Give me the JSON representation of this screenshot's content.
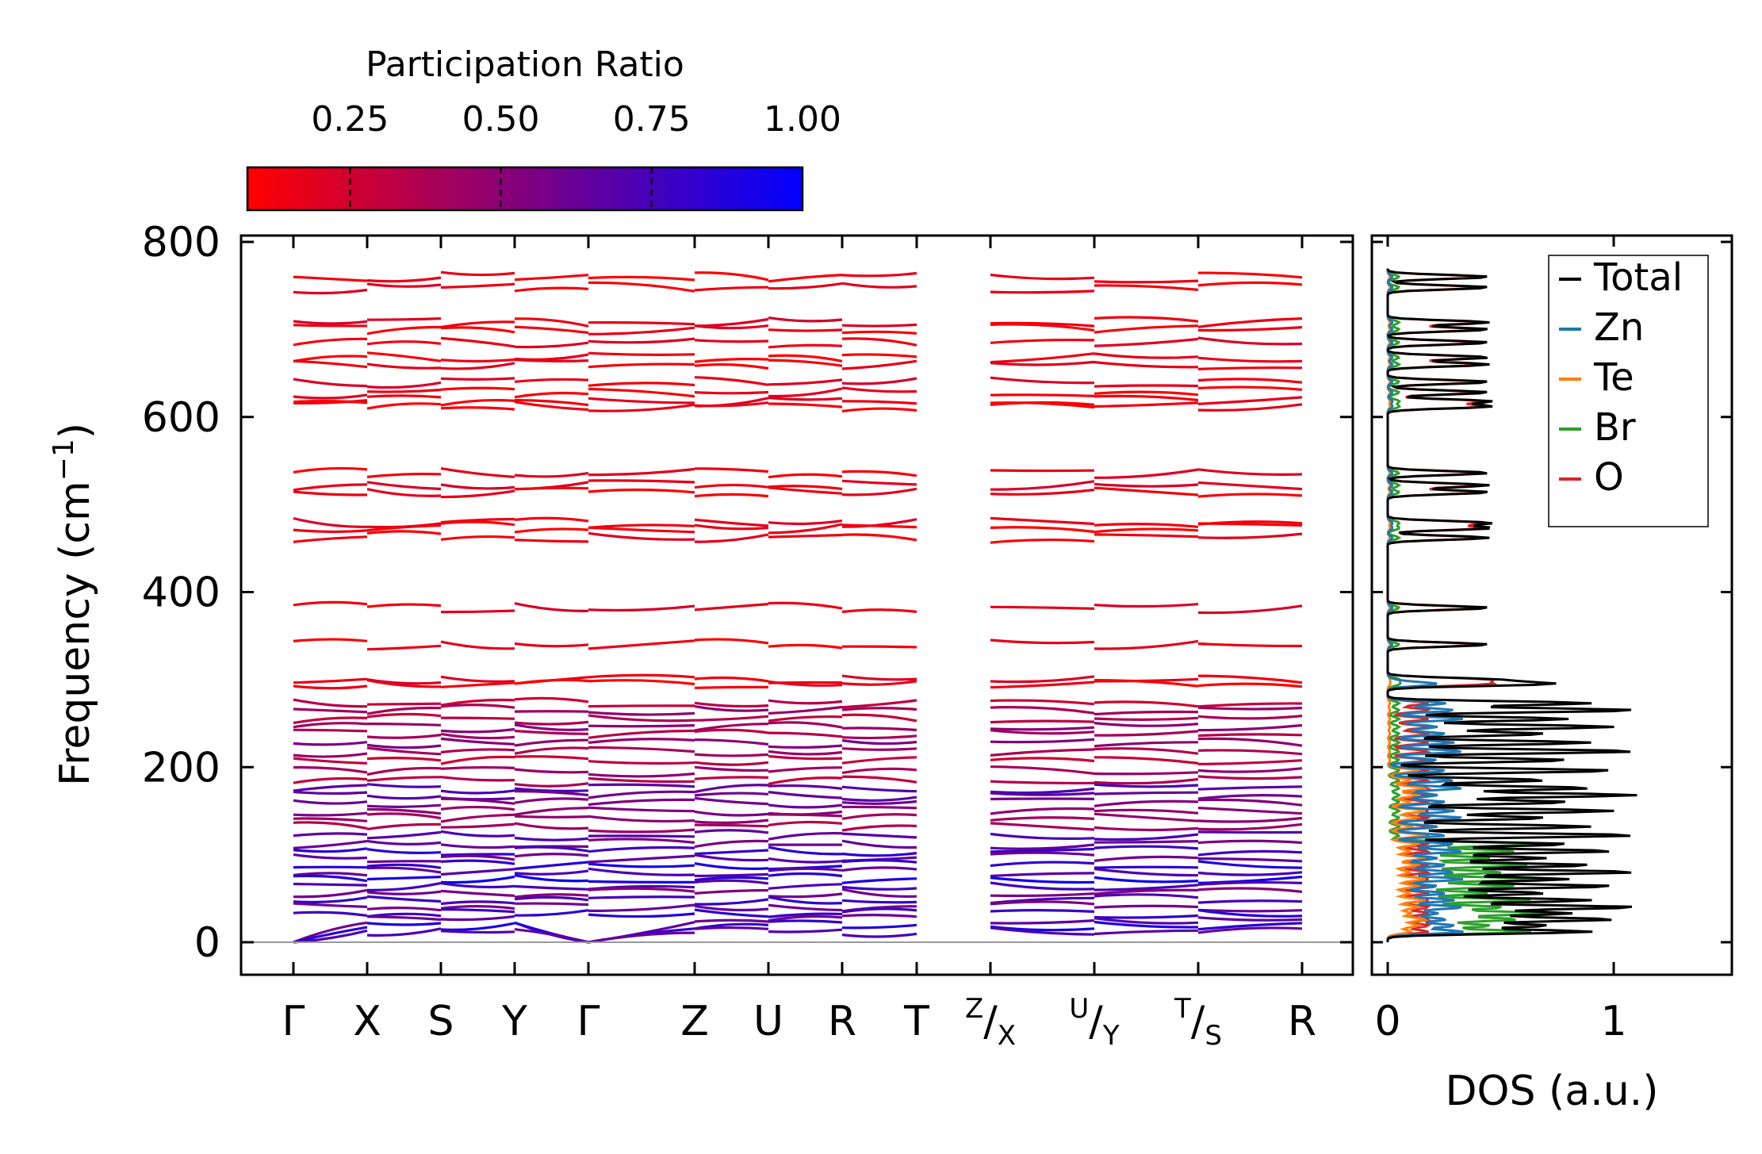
{
  "chart_data": [
    {
      "type": "line",
      "panel": "band-structure",
      "ylabel": "Frequency (cm⁻¹)",
      "ylabel_text": "Frequency (cm",
      "ylabel_sup": "−1",
      "ylabel_close": ")",
      "ylim": [
        -37,
        800
      ],
      "yticks": [
        0,
        200,
        400,
        600,
        800
      ],
      "ytick_labels": [
        "0",
        "200",
        "400",
        "600",
        "800"
      ],
      "path_labels": [
        {
          "main": "Γ"
        },
        {
          "main": "X"
        },
        {
          "main": "S"
        },
        {
          "main": "Y"
        },
        {
          "main": "Γ"
        },
        {
          "main": "Z"
        },
        {
          "main": "U"
        },
        {
          "main": "R"
        },
        {
          "main": "T"
        },
        {
          "sup": "Z",
          "main": "/",
          "sub": "X"
        },
        {
          "sup": "U",
          "main": "/",
          "sub": "Y"
        },
        {
          "sup": "T",
          "main": "/",
          "sub": "S"
        },
        {
          "main": "R"
        }
      ],
      "band_frequencies": [
        760,
        748,
        708,
        700,
        685,
        668,
        660,
        640,
        628,
        618,
        612,
        536,
        522,
        514,
        479,
        473,
        462,
        382,
        340,
        300,
        295,
        273,
        265,
        255,
        246,
        238,
        228,
        218,
        208,
        196,
        185,
        176,
        168,
        160,
        150,
        142,
        132,
        122,
        112,
        104,
        96,
        88,
        80,
        72,
        64,
        56,
        48,
        40,
        33,
        26,
        19,
        12
      ],
      "colormap": {
        "label": "Participation Ratio",
        "range": [
          0.08,
          1.0
        ],
        "ticks": [
          "0.25",
          "0.50",
          "0.75",
          "1.00"
        ],
        "tick_values": [
          0.25,
          0.5,
          0.75,
          1.0
        ],
        "color_low": "#ff0000",
        "color_high": "#0000ff"
      }
    },
    {
      "type": "line",
      "panel": "dos",
      "xlabel": "DOS (a.u.)",
      "xlim": [
        -0.02,
        1.55
      ],
      "xticks": [
        "0",
        "1"
      ],
      "xtick_values": [
        0,
        1
      ],
      "series": [
        {
          "name": "Total",
          "color": "#000000"
        },
        {
          "name": "Zn",
          "color": "#1f77b4"
        },
        {
          "name": "Te",
          "color": "#ff7f0e"
        },
        {
          "name": "Br",
          "color": "#2ca02c"
        },
        {
          "name": "O",
          "color": "#d62728"
        }
      ]
    }
  ]
}
